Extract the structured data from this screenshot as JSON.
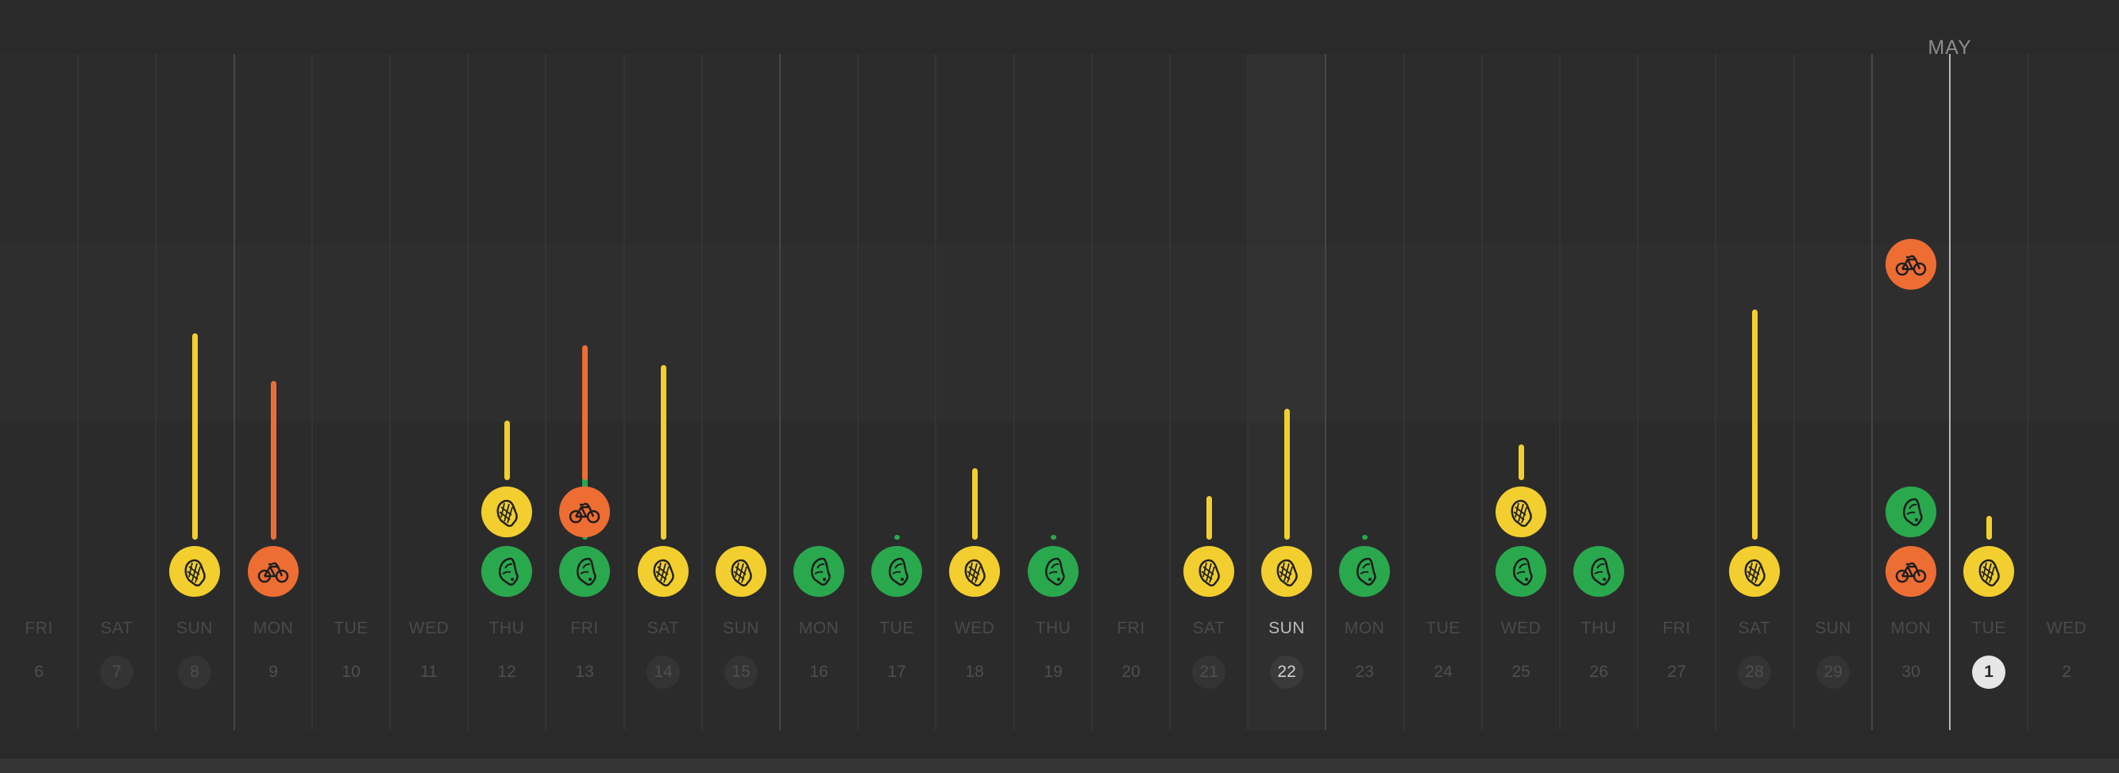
{
  "colors": {
    "background": "#2a2a2a",
    "run": "#f2cf2e",
    "walk": "#2aa84e",
    "bike": "#ee6d33",
    "today_line": "#b8b8b8",
    "today_circle": "#e6e6e6",
    "label_dim": "#4a4a4a",
    "label_current": "#bdbdbd"
  },
  "month_label": "MAY",
  "activity_types": {
    "run": {
      "color": "#f2cf2e",
      "icon": "running-shoe-icon"
    },
    "walk": {
      "color": "#2aa84e",
      "icon": "walking-shoe-icon"
    },
    "bike": {
      "color": "#ee6d33",
      "icon": "bicycle-icon"
    }
  },
  "days": [
    {
      "dow": "FRI",
      "date": "6",
      "weekend": false,
      "activities": []
    },
    {
      "dow": "SAT",
      "date": "7",
      "weekend": true,
      "activities": []
    },
    {
      "dow": "SUN",
      "date": "8",
      "weekend": true,
      "activities": [
        {
          "type": "run",
          "amount": 260
        }
      ]
    },
    {
      "dow": "MON",
      "date": "9",
      "weekend": false,
      "activities": [
        {
          "type": "bike",
          "amount": 200
        }
      ]
    },
    {
      "dow": "TUE",
      "date": "10",
      "weekend": false,
      "activities": []
    },
    {
      "dow": "WED",
      "date": "11",
      "weekend": false,
      "activities": []
    },
    {
      "dow": "THU",
      "date": "12",
      "weekend": false,
      "activities": [
        {
          "type": "walk",
          "amount": 0
        },
        {
          "type": "run",
          "amount": 75
        }
      ]
    },
    {
      "dow": "FRI",
      "date": "13",
      "weekend": false,
      "activities": [
        {
          "type": "walk",
          "amount": 145
        },
        {
          "type": "bike",
          "amount": 170
        }
      ]
    },
    {
      "dow": "SAT",
      "date": "14",
      "weekend": true,
      "activities": [
        {
          "type": "run",
          "amount": 220
        }
      ]
    },
    {
      "dow": "SUN",
      "date": "15",
      "weekend": true,
      "activities": [
        {
          "type": "run",
          "amount": 0
        }
      ]
    },
    {
      "dow": "MON",
      "date": "16",
      "weekend": false,
      "activities": [
        {
          "type": "walk",
          "amount": 0
        }
      ]
    },
    {
      "dow": "TUE",
      "date": "17",
      "weekend": false,
      "activities": [
        {
          "type": "walk",
          "amount": 6
        }
      ]
    },
    {
      "dow": "WED",
      "date": "18",
      "weekend": false,
      "activities": [
        {
          "type": "run",
          "amount": 90
        }
      ]
    },
    {
      "dow": "THU",
      "date": "19",
      "weekend": false,
      "activities": [
        {
          "type": "walk",
          "amount": 6
        }
      ]
    },
    {
      "dow": "FRI",
      "date": "20",
      "weekend": false,
      "activities": []
    },
    {
      "dow": "SAT",
      "date": "21",
      "weekend": true,
      "activities": [
        {
          "type": "run",
          "amount": 55
        }
      ]
    },
    {
      "dow": "SUN",
      "date": "22",
      "weekend": true,
      "current": true,
      "activities": [
        {
          "type": "run",
          "amount": 165
        }
      ]
    },
    {
      "dow": "MON",
      "date": "23",
      "weekend": false,
      "activities": [
        {
          "type": "walk",
          "amount": 6
        }
      ]
    },
    {
      "dow": "TUE",
      "date": "24",
      "weekend": false,
      "activities": []
    },
    {
      "dow": "WED",
      "date": "25",
      "weekend": false,
      "activities": [
        {
          "type": "walk",
          "amount": 0
        },
        {
          "type": "run",
          "amount": 45
        }
      ]
    },
    {
      "dow": "THU",
      "date": "26",
      "weekend": false,
      "activities": [
        {
          "type": "walk",
          "amount": 0
        }
      ]
    },
    {
      "dow": "FRI",
      "date": "27",
      "weekend": false,
      "activities": []
    },
    {
      "dow": "SAT",
      "date": "28",
      "weekend": true,
      "activities": [
        {
          "type": "run",
          "amount": 290
        }
      ]
    },
    {
      "dow": "SUN",
      "date": "29",
      "weekend": true,
      "activities": []
    },
    {
      "dow": "MON",
      "date": "30",
      "weekend": false,
      "activities": [
        {
          "type": "bike",
          "amount": 0
        },
        {
          "type": "walk",
          "amount": 0
        },
        {
          "type": "bike",
          "amount": 0
        }
      ]
    },
    {
      "dow": "TUE",
      "date": "1",
      "weekend": false,
      "today": true,
      "activities": [
        {
          "type": "run",
          "amount": 30
        }
      ]
    },
    {
      "dow": "WED",
      "date": "2",
      "weekend": false,
      "activities": []
    }
  ]
}
